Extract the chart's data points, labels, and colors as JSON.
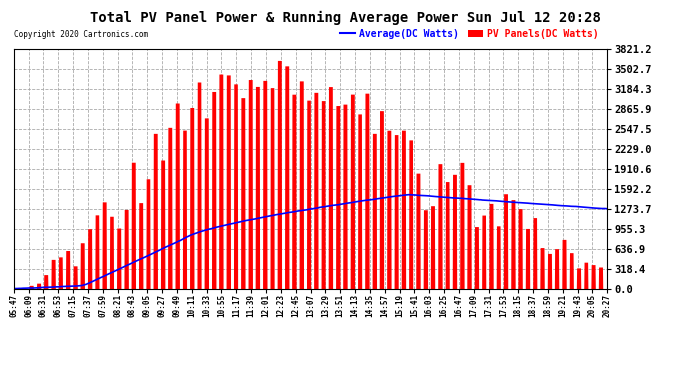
{
  "title": "Total PV Panel Power & Running Average Power Sun Jul 12 20:28",
  "copyright": "Copyright 2020 Cartronics.com",
  "legend_avg": "Average(DC Watts)",
  "legend_pv": "PV Panels(DC Watts)",
  "yticks": [
    0.0,
    318.4,
    636.9,
    955.3,
    1273.7,
    1592.2,
    1910.6,
    2229.0,
    2547.5,
    2865.9,
    3184.3,
    3502.7,
    3821.2
  ],
  "ymax": 3821.2,
  "ymin": 0.0,
  "bg_color": "#ffffff",
  "grid_color": "#aaaaaa",
  "bar_color": "#ff0000",
  "avg_color": "#0000ff",
  "title_color": "#000000",
  "copyright_color": "#000000",
  "legend_avg_color": "#0000ff",
  "legend_pv_color": "#ff0000",
  "xtick_labels": [
    "05:47",
    "06:09",
    "06:31",
    "06:53",
    "07:15",
    "07:37",
    "07:59",
    "08:21",
    "08:43",
    "09:05",
    "09:27",
    "09:49",
    "10:11",
    "10:33",
    "10:55",
    "11:17",
    "11:39",
    "12:01",
    "12:23",
    "12:45",
    "13:07",
    "13:29",
    "13:51",
    "14:13",
    "14:35",
    "14:57",
    "15:19",
    "15:41",
    "16:03",
    "16:25",
    "16:47",
    "17:09",
    "17:31",
    "17:53",
    "18:15",
    "18:37",
    "18:59",
    "19:21",
    "19:43",
    "20:05",
    "20:27"
  ]
}
